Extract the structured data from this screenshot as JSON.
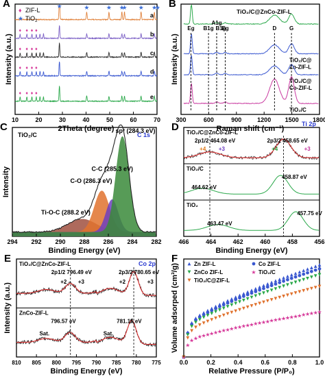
{
  "chart_data": [
    {
      "panel": "A",
      "type": "line",
      "xlabel": "2Theta (degree)",
      "ylabel": "Intensity (a.u.)",
      "xlim": [
        5,
        70
      ],
      "xticks": [
        "10",
        "20",
        "30",
        "40",
        "50",
        "60",
        "70"
      ],
      "legend": [
        {
          "marker": "♦",
          "label": "ZIF-L",
          "color": "#d63a9a"
        },
        {
          "marker": "★",
          "label": "TiO",
          "sub": "2",
          "color": "#3d6fd6"
        }
      ],
      "legend_position": "top-left",
      "series": [
        {
          "name": "a",
          "color": "#e0813a",
          "baseline": 0.86,
          "peak_scale": 1.0
        },
        {
          "name": "b",
          "color": "#7b5fc5",
          "baseline": 0.69,
          "peak_scale": 0.55
        },
        {
          "name": "c",
          "color": "#2a2a2a",
          "baseline": 0.52,
          "peak_scale": 0.6
        },
        {
          "name": "d",
          "color": "#3a58d0",
          "baseline": 0.35,
          "peak_scale": 0.6
        },
        {
          "name": "e",
          "color": "#2aa84a",
          "baseline": 0.12,
          "peak_scale": 0.65
        }
      ],
      "tio2_peaks": [
        25.3,
        37.8,
        48.0,
        53.9,
        55.1,
        62.7,
        68.8,
        70.3
      ],
      "zif_peaks": [
        7.3,
        10.4,
        12.7,
        14.7,
        16.4,
        18.0
      ]
    },
    {
      "panel": "B",
      "type": "line",
      "title": "TiO₂/C@ZnCo-ZIF-L",
      "xlabel": "Raman shift (cm⁻¹)",
      "ylabel": "Intensity (a.u.)",
      "xlim": [
        0,
        2000
      ],
      "xticks": [
        "300",
        "600",
        "900",
        "1200",
        "1500",
        "1800"
      ],
      "band_labels": [
        {
          "label": "Eg",
          "x": 144
        },
        {
          "label": "B1g",
          "x": 397
        },
        {
          "label": "A1g",
          "x": 515
        },
        {
          "label": "B1g",
          "x": 515
        },
        {
          "label": "Eg",
          "x": 639
        },
        {
          "label": "D",
          "x": 1350
        },
        {
          "label": "G",
          "x": 1595
        }
      ],
      "series": [
        {
          "name": "TiO₂/C@ZnCo-ZIF-L",
          "color": "#2aa84a",
          "baseline": 0.82
        },
        {
          "name": "TiO₂/C@Zn-ZIF-L",
          "color": "#3a58d0",
          "baseline": 0.55,
          "label_lines": [
            "TiO₂/C@",
            "Zn-ZIF-L"
          ]
        },
        {
          "name": "TiO₂/C@Co-ZIF-L",
          "color": "#3a58d0",
          "baseline": 0.36,
          "label_lines": [
            "TiO₂/C@",
            "Co-ZIF-L"
          ]
        },
        {
          "name": "TiO₂/C",
          "color": "#c93aa0",
          "baseline": 0.1,
          "label_lines": [
            "TiO₂/C"
          ]
        }
      ]
    },
    {
      "panel": "C",
      "type": "area",
      "title": "TiO₂/C",
      "title_right": "C 1s",
      "xlabel": "Binding Energy (eV)",
      "ylabel": "Intensity",
      "xlim": [
        295,
        281
      ],
      "xticks": [
        "294",
        "292",
        "290",
        "288",
        "286",
        "284",
        "282"
      ],
      "peaks": [
        {
          "label": "sp² (284.3 eV)",
          "center": 284.3,
          "height": 0.88,
          "width": 0.65,
          "color": "#3a8a3a"
        },
        {
          "label": "C-C (285.3 eV)",
          "center": 285.3,
          "height": 0.3,
          "width": 0.6,
          "color": "#6e3fc0"
        },
        {
          "label": "C-O (286.3 eV)",
          "center": 286.3,
          "height": 0.38,
          "width": 0.75,
          "color": "#e0722e"
        },
        {
          "label": "Ti-O-C (288.2 eV)",
          "center": 288.2,
          "height": 0.12,
          "width": 1.4,
          "color": "#a05040"
        }
      ]
    },
    {
      "panel": "D",
      "type": "line",
      "title_right": "Ti 2p",
      "xlabel": "Binding Energy (eV)",
      "xlim": [
        466,
        456
      ],
      "xticks": [
        "466",
        "464",
        "462",
        "460",
        "458",
        "456"
      ],
      "subpanels": [
        {
          "label": "TiO₂/C@ZnCo-ZIF-L",
          "peak_labels": [
            "2p1/2 464.08 eV",
            "2p3/2 458.65 eV"
          ],
          "ox_labels": [
            "+4",
            "+3",
            "+4",
            "+3"
          ],
          "peaks": [
            464.08,
            458.65
          ]
        },
        {
          "label": "TiO₂/C",
          "peak_labels": [
            "464.62 eV",
            "458.87 eV"
          ],
          "peaks": [
            464.62,
            458.87
          ]
        },
        {
          "label": "TiO₂",
          "peak_labels": [
            "463.47 eV",
            "457.75 eV"
          ],
          "peaks": [
            463.47,
            457.75
          ]
        }
      ]
    },
    {
      "panel": "E",
      "type": "line",
      "title_right": "Co 2p",
      "xlabel": "Binding Energy (eV)",
      "ylabel": "Intensity (a.u.)",
      "xlim": [
        810,
        775
      ],
      "xticks": [
        "810",
        "805",
        "800",
        "795",
        "790",
        "785",
        "780",
        "775"
      ],
      "subpanels": [
        {
          "label": "TiO₂/C@ZnCo-ZIF-L",
          "peak_labels": [
            "2p1/2 796.49 eV",
            "2p3/2 780.65 eV"
          ],
          "ox_labels": [
            "+2",
            "+3",
            "+2",
            "+3"
          ],
          "peaks": [
            796.49,
            780.65
          ]
        },
        {
          "label": "ZnCo-ZIF-L",
          "peak_labels": [
            "796.57 eV",
            "781.15 eV"
          ],
          "sat_labels": [
            "Sat.",
            "Sat."
          ],
          "peaks": [
            796.57,
            781.15
          ]
        }
      ]
    },
    {
      "panel": "F",
      "type": "scatter",
      "xlabel": "Relative Pressure (P/P₀)",
      "ylabel": "Volume adsorped (cm³/g)",
      "xlim": [
        0,
        1.0
      ],
      "xticks": [
        "0.0",
        "0.2",
        "0.4",
        "0.6",
        "0.8",
        "1.0"
      ],
      "legend_position": "top-left",
      "series": [
        {
          "name": "Zn ZIF-L",
          "marker": "triangle-up",
          "color": "#3a58d0",
          "end_value": 0.94
        },
        {
          "name": "Co ZIF-L",
          "marker": "circle",
          "color": "#3a58d0",
          "end_value": 0.9
        },
        {
          "name": "ZnCo ZIF-L",
          "marker": "triangle-down",
          "color": "#2aa84a",
          "end_value": 0.84
        },
        {
          "name": "TiO₂/C",
          "marker": "star",
          "color": "#d63a9a",
          "end_value": 0.46
        },
        {
          "name": "TiO₂/C@ZIF-L",
          "marker": "triangle-down",
          "color": "#e0722e",
          "end_value": 0.72
        }
      ]
    }
  ]
}
